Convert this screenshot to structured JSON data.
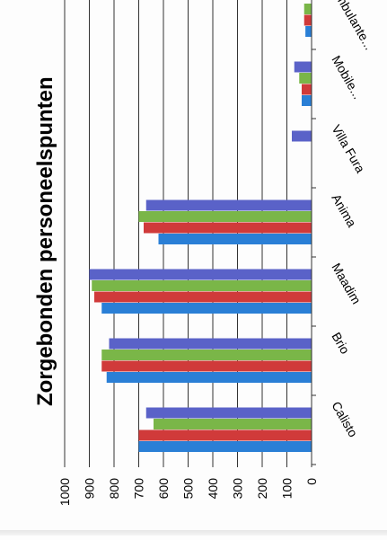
{
  "chart_data": {
    "type": "bar",
    "orientation": "rotated page, bars extend from value axis at bottom",
    "title": "Zorgebonden personeelspunten",
    "xlabel": "",
    "ylabel": "",
    "ylim": [
      0,
      1000
    ],
    "y_ticks": [
      "0",
      "100",
      "200",
      "300",
      "400",
      "500",
      "600",
      "700",
      "800",
      "900",
      "1000"
    ],
    "grid": true,
    "legend": "none",
    "categories": [
      "Calisto",
      "Brio",
      "Maadim",
      "Anima",
      "Villa Fura",
      "Mobile...",
      "Ambulante..."
    ],
    "series": [
      {
        "color": "#2a7fd6",
        "values": [
          700,
          830,
          850,
          620,
          0,
          40,
          25
        ]
      },
      {
        "color": "#d03a3a",
        "values": [
          700,
          850,
          880,
          680,
          0,
          40,
          30
        ]
      },
      {
        "color": "#7ab648",
        "values": [
          640,
          850,
          890,
          700,
          0,
          50,
          30
        ]
      },
      {
        "color": "#5a62c8",
        "values": [
          670,
          820,
          900,
          670,
          80,
          70,
          0
        ]
      }
    ]
  }
}
